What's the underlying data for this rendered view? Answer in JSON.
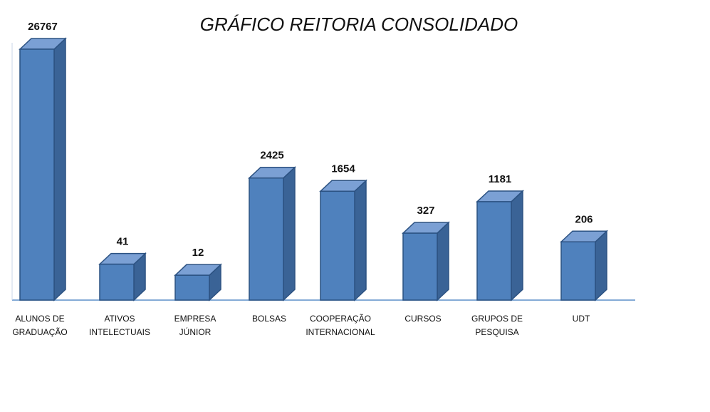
{
  "chart_data": {
    "type": "bar",
    "title": "GRÁFICO REITORIA CONSOLIDADO",
    "xlabel": "",
    "ylabel": "",
    "categories": [
      [
        "ALUNOS DE",
        "GRADUAÇÃO"
      ],
      [
        "ATIVOS",
        "INTELECTUAIS"
      ],
      [
        "EMPRESA",
        "JÚNIOR"
      ],
      [
        "BOLSAS"
      ],
      [
        "COOPERAÇÃO",
        "INTERNACIONAL"
      ],
      [
        "CURSOS"
      ],
      [
        "GRUPOS DE",
        "PESQUISA"
      ],
      [
        "UDT"
      ]
    ],
    "values": [
      26767,
      41,
      12,
      2425,
      1654,
      327,
      1181,
      206
    ],
    "value_labels": [
      "26767",
      "41",
      "12",
      "2425",
      "1654",
      "327",
      "1181",
      "206"
    ],
    "grid": false,
    "legend": "none",
    "colors": {
      "bar_front": "#4f81bd",
      "bar_top": "#7ba0d4",
      "bar_side": "#3a6396",
      "bar_edge": "#2c5282",
      "axis": "#5b8fc9"
    }
  }
}
